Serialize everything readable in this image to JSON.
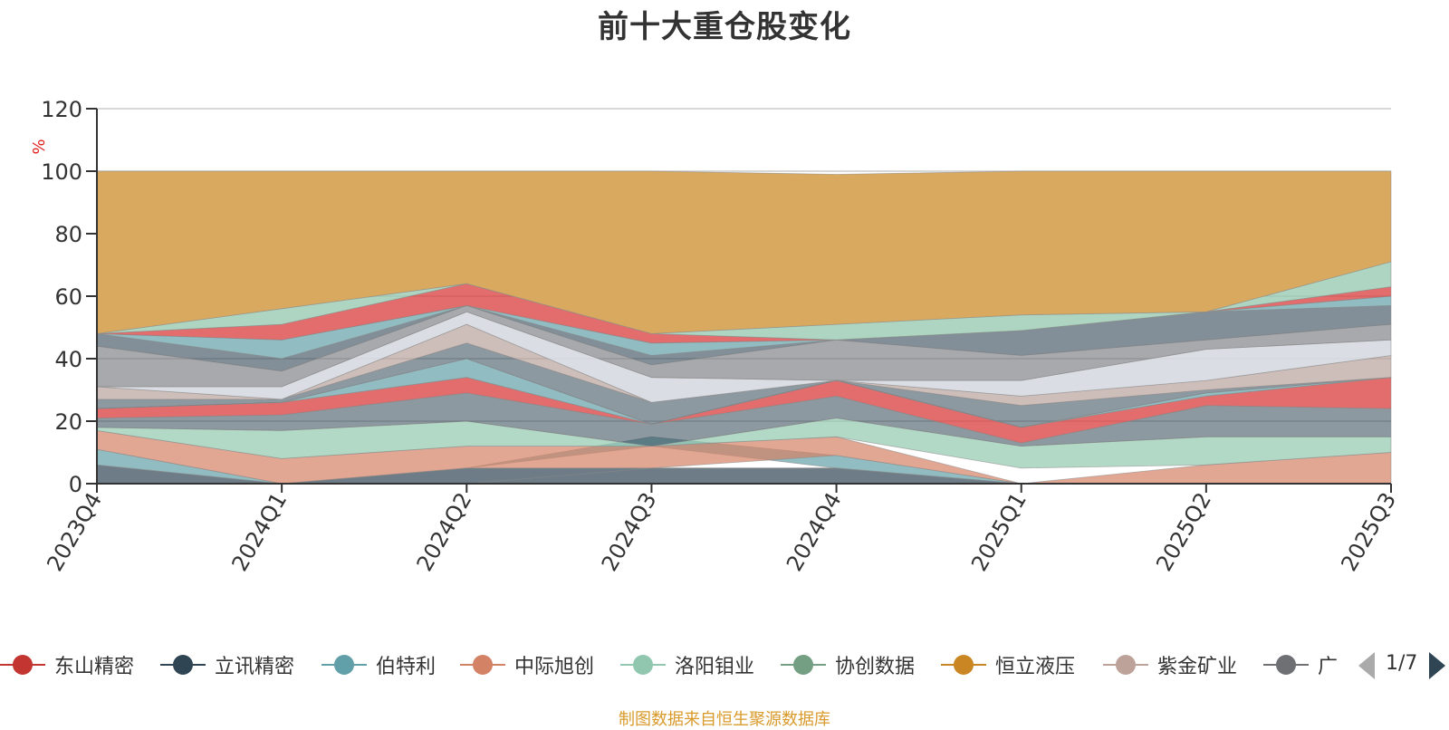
{
  "chart_data": {
    "type": "area",
    "title": "前十大重仓股变化",
    "ylabel": "%",
    "ylim": [
      0,
      120
    ],
    "yticks": [
      0,
      20,
      40,
      60,
      80,
      100,
      120
    ],
    "grid": true,
    "categories": [
      "2023Q4",
      "2024Q1",
      "2024Q2",
      "2024Q3",
      "2024Q4",
      "2025Q1",
      "2025Q2",
      "2025Q3"
    ],
    "layers": [
      {
        "name": "layer-a",
        "color": "#2f4554",
        "opacity": 0.7,
        "lower": [
          0,
          0,
          0,
          0,
          0,
          0,
          0,
          0
        ],
        "upper": [
          6,
          0,
          5,
          5,
          5,
          0,
          0,
          0
        ]
      },
      {
        "name": "layer-b",
        "color": "#d93c3c",
        "opacity": 0.75,
        "lower": [
          0,
          0,
          0,
          5,
          5,
          0,
          0,
          0
        ],
        "upper": [
          0,
          0,
          0,
          5,
          5,
          0,
          0,
          0
        ]
      },
      {
        "name": "layer-c",
        "color": "#61a0a8",
        "opacity": 0.7,
        "lower": [
          6,
          0,
          5,
          12,
          5,
          0,
          0,
          0
        ],
        "upper": [
          11,
          0,
          5,
          15,
          9,
          0,
          0,
          0
        ]
      },
      {
        "name": "layer-d",
        "color": "#d48265",
        "opacity": 0.7,
        "lower": [
          11,
          0,
          5,
          5,
          9,
          0,
          0,
          0
        ],
        "upper": [
          17,
          8,
          12,
          12,
          15,
          0,
          6,
          10
        ]
      },
      {
        "name": "layer-e",
        "color": "#91c7ae",
        "opacity": 0.7,
        "lower": [
          17,
          8,
          12,
          12,
          15,
          5,
          6,
          10
        ],
        "upper": [
          18,
          17,
          20,
          12,
          21,
          12,
          15,
          15
        ]
      },
      {
        "name": "layer-f",
        "color": "#2f4554",
        "opacity": 0.55,
        "lower": [
          18,
          17,
          20,
          12,
          21,
          12,
          15,
          15
        ],
        "upper": [
          21,
          22,
          29,
          19,
          28,
          13,
          25,
          24
        ]
      },
      {
        "name": "layer-g",
        "color": "#d93c3c",
        "opacity": 0.75,
        "lower": [
          21,
          22,
          29,
          19,
          28,
          13,
          25,
          24
        ],
        "upper": [
          24,
          26,
          34,
          19,
          33,
          18,
          28,
          34
        ]
      },
      {
        "name": "layer-h",
        "color": "#61a0a8",
        "opacity": 0.7,
        "lower": [
          24,
          26,
          34,
          19,
          33,
          18,
          28,
          34
        ],
        "upper": [
          24,
          26,
          40,
          19,
          33,
          18,
          29,
          34
        ]
      },
      {
        "name": "layer-i",
        "color": "#2f4554",
        "opacity": 0.55,
        "lower": [
          24,
          26,
          40,
          19,
          33,
          18,
          29,
          34
        ],
        "upper": [
          27,
          27,
          45,
          26,
          33,
          25,
          30,
          34
        ]
      },
      {
        "name": "layer-j",
        "color": "#b9a39b",
        "opacity": 0.7,
        "lower": [
          27,
          27,
          45,
          26,
          33,
          25,
          30,
          34
        ],
        "upper": [
          31,
          27,
          51,
          26,
          33,
          28,
          33,
          41
        ]
      },
      {
        "name": "layer-k",
        "color": "#d6d9e0",
        "opacity": 0.9,
        "lower": [
          31,
          27,
          51,
          26,
          33,
          28,
          33,
          41
        ],
        "upper": [
          31,
          31,
          55,
          34,
          33,
          33,
          43,
          46
        ]
      },
      {
        "name": "layer-l",
        "color": "#6e7074",
        "opacity": 0.6,
        "lower": [
          31,
          31,
          55,
          34,
          33,
          33,
          43,
          46
        ],
        "upper": [
          44,
          36,
          57,
          38,
          46,
          41,
          46,
          51
        ]
      },
      {
        "name": "layer-m",
        "color": "#2f4554",
        "opacity": 0.6,
        "lower": [
          44,
          36,
          57,
          38,
          46,
          41,
          46,
          51
        ],
        "upper": [
          48,
          40,
          57,
          41,
          46,
          49,
          55,
          57
        ]
      },
      {
        "name": "layer-n",
        "color": "#61a0a8",
        "opacity": 0.7,
        "lower": [
          48,
          40,
          57,
          41,
          46,
          49,
          55,
          57
        ],
        "upper": [
          48,
          46,
          57,
          45,
          46,
          49,
          55,
          60
        ]
      },
      {
        "name": "layer-o",
        "color": "#d93c3c",
        "opacity": 0.75,
        "lower": [
          48,
          46,
          57,
          45,
          46,
          49,
          55,
          60
        ],
        "upper": [
          48,
          51,
          64,
          48,
          46,
          49,
          55,
          63
        ]
      },
      {
        "name": "layer-p",
        "color": "#91c7ae",
        "opacity": 0.75,
        "lower": [
          48,
          51,
          64,
          48,
          46,
          49,
          55,
          63
        ],
        "upper": [
          48,
          56,
          64,
          48,
          51,
          54,
          55,
          71
        ]
      },
      {
        "name": "layer-q",
        "color": "#d8a95f",
        "opacity": 1.0,
        "lower": [
          48,
          56,
          64,
          48,
          51,
          54,
          55,
          71
        ],
        "upper": [
          100,
          100,
          100,
          100,
          99,
          100,
          100,
          100
        ]
      }
    ],
    "series_names": [
      "东山精密",
      "立讯精密",
      "伯特利",
      "中际旭创",
      "洛阳钼业",
      "协创数据",
      "恒立液压",
      "紫金矿业",
      "广"
    ]
  },
  "legend": {
    "items": [
      {
        "label": "东山精密",
        "color": "#c23531"
      },
      {
        "label": "立讯精密",
        "color": "#2f4554"
      },
      {
        "label": "伯特利",
        "color": "#61a0a8"
      },
      {
        "label": "中际旭创",
        "color": "#d48265"
      },
      {
        "label": "洛阳钼业",
        "color": "#91c7ae"
      },
      {
        "label": "协创数据",
        "color": "#749f83"
      },
      {
        "label": "恒立液压",
        "color": "#ca8622"
      },
      {
        "label": "紫金矿业",
        "color": "#bda29a"
      },
      {
        "label": "广",
        "color": "#6e7074"
      }
    ],
    "page": "1/7"
  },
  "footer": {
    "source": "制图数据来自恒生聚源数据库"
  }
}
